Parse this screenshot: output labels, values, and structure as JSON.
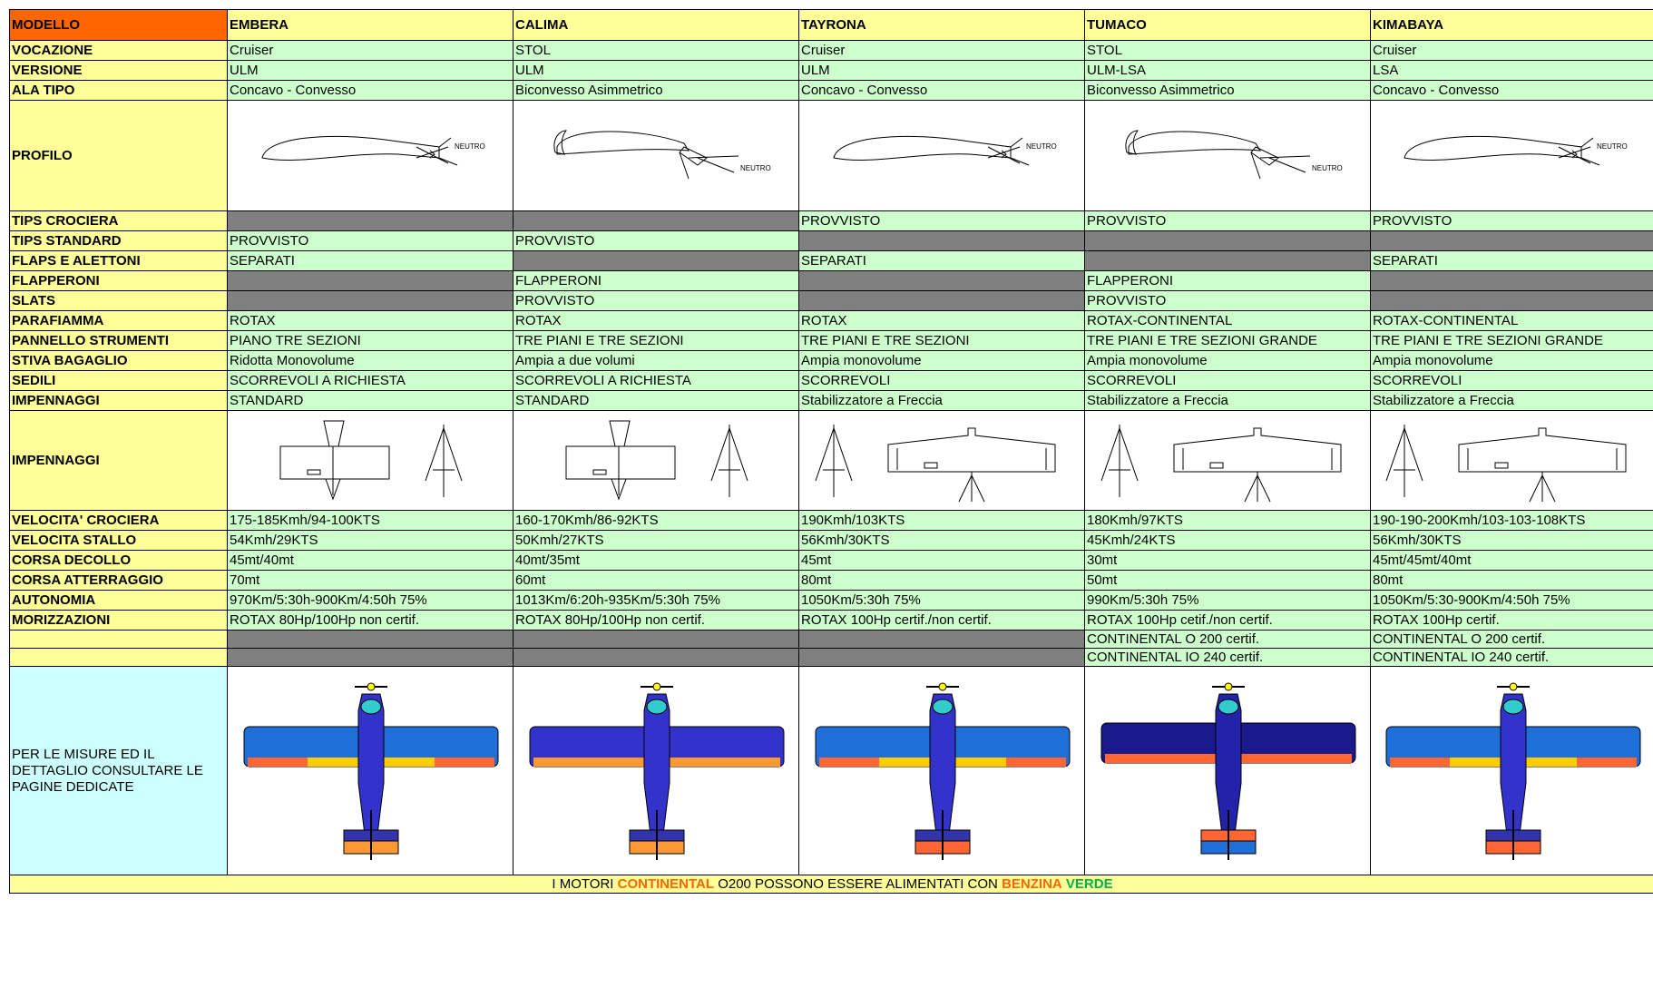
{
  "header": {
    "label": "MODELLO",
    "models": [
      "EMBERA",
      "CALIMA",
      "TAYRONA",
      "TUMACO",
      "KIMABAYA"
    ]
  },
  "rows": {
    "vocazione": {
      "label": "VOCAZIONE",
      "values": [
        "Cruiser",
        "STOL",
        "Cruiser",
        "STOL",
        "Cruiser"
      ]
    },
    "versione": {
      "label": "VERSIONE",
      "values": [
        "ULM",
        "ULM",
        "ULM",
        "ULM-LSA",
        "LSA"
      ]
    },
    "ala_tipo": {
      "label": "ALA TIPO",
      "values": [
        "Concavo - Convesso",
        "Biconvesso Asimmetrico",
        "Concavo - Convesso",
        "Biconvesso Asimmetrico",
        "Concavo - Convesso"
      ]
    },
    "profilo": {
      "label": "PROFILO",
      "text": "NEUTRO"
    },
    "tips_crociera": {
      "label": "TIPS CROCIERA",
      "values": [
        "",
        "",
        "PROVVISTO",
        "PROVVISTO",
        "PROVVISTO"
      ]
    },
    "tips_standard": {
      "label": "TIPS STANDARD",
      "values": [
        "PROVVISTO",
        "PROVVISTO",
        "",
        "",
        ""
      ]
    },
    "flaps_alettoni": {
      "label": "FLAPS E ALETTONI",
      "values": [
        "SEPARATI",
        "",
        "SEPARATI",
        "",
        "SEPARATI"
      ]
    },
    "flapperoni": {
      "label": "FLAPPERONI",
      "values": [
        "",
        "FLAPPERONI",
        "",
        "FLAPPERONI",
        ""
      ]
    },
    "slats": {
      "label": "SLATS",
      "values": [
        "",
        "PROVVISTO",
        "",
        "PROVVISTO",
        ""
      ]
    },
    "parafiamma": {
      "label": "PARAFIAMMA",
      "values": [
        "ROTAX",
        "ROTAX",
        "ROTAX",
        "ROTAX-CONTINENTAL",
        "ROTAX-CONTINENTAL"
      ]
    },
    "pannello": {
      "label": "PANNELLO STRUMENTI",
      "values": [
        "PIANO TRE SEZIONI",
        "TRE PIANI E TRE SEZIONI",
        "TRE PIANI E TRE SEZIONI",
        "TRE PIANI E TRE SEZIONI GRANDE",
        "TRE PIANI E TRE SEZIONI GRANDE"
      ]
    },
    "stiva": {
      "label": "STIVA BAGAGLIO",
      "values": [
        "Ridotta Monovolume",
        "Ampia a due volumi",
        "Ampia monovolume",
        "Ampia monovolume",
        "Ampia monovolume"
      ]
    },
    "sedili": {
      "label": "SEDILI",
      "values": [
        "SCORREVOLI A RICHIESTA",
        "SCORREVOLI A RICHIESTA",
        "SCORREVOLI",
        "SCORREVOLI",
        "SCORREVOLI"
      ]
    },
    "impennaggi": {
      "label": "IMPENNAGGI",
      "values": [
        "STANDARD",
        "STANDARD",
        "Stabilizzatore a Freccia",
        "Stabilizzatore a Freccia",
        "Stabilizzatore a Freccia"
      ]
    },
    "impennaggi_img": {
      "label": "IMPENNAGGI"
    },
    "vel_crociera": {
      "label": "VELOCITA' CROCIERA",
      "values": [
        "175-185Kmh/94-100KTS",
        "160-170Kmh/86-92KTS",
        "190Kmh/103KTS",
        "180Kmh/97KTS",
        "190-190-200Kmh/103-103-108KTS"
      ]
    },
    "vel_stallo": {
      "label": "VELOCITA STALLO",
      "values": [
        "54Kmh/29KTS",
        "50Kmh/27KTS",
        "56Kmh/30KTS",
        "45Kmh/24KTS",
        "56Kmh/30KTS"
      ]
    },
    "corsa_decollo": {
      "label": "CORSA DECOLLO",
      "values": [
        "45mt/40mt",
        "40mt/35mt",
        "45mt",
        "30mt",
        "45mt/45mt/40mt"
      ]
    },
    "corsa_atterraggio": {
      "label": "CORSA ATTERRAGGIO",
      "values": [
        "70mt",
        "60mt",
        "80mt",
        "50mt",
        "80mt"
      ]
    },
    "autonomia": {
      "label": "AUTONOMIA",
      "values": [
        "970Km/5:30h-900Km/4:50h 75%",
        "1013Km/6:20h-935Km/5:30h 75%",
        "1050Km/5:30h 75%",
        "990Km/5:30h 75%",
        "1050Km/5:30-900Km/4:50h 75%"
      ]
    },
    "motorizzazioni": {
      "label": "MORIZZAZIONI",
      "line1": [
        "ROTAX 80Hp/100Hp non certif.",
        "ROTAX 80Hp/100Hp non certif.",
        "ROTAX 100Hp certif./non certif.",
        "ROTAX 100Hp cetif./non certif.",
        "ROTAX 100Hp certif."
      ],
      "line2": [
        "",
        "",
        "",
        "CONTINENTAL O 200 certif.",
        "CONTINENTAL O 200 certif."
      ],
      "line3": [
        "",
        "",
        "",
        "CONTINENTAL IO 240 certif.",
        "CONTINENTAL IO 240 certif."
      ]
    },
    "misure": {
      "label": "PER LE MISURE ED IL DETTAGLIO CONSULTARE LE PAGINE DEDICATE"
    }
  },
  "footer": {
    "part1": "I MOTORI ",
    "continental": "CONTINENTAL",
    "part2": " O200 POSSONO ESSERE ALIMENTATI CON ",
    "benzina": "BENZINA",
    "space": " ",
    "verde": "VERDE"
  },
  "colors": {
    "header_orange": "#ff6600",
    "label_yellow": "#ffff99",
    "value_green": "#ccffcc",
    "empty_gray": "#808080",
    "model_red": "#ff0000",
    "note_cyan": "#ccffff"
  }
}
